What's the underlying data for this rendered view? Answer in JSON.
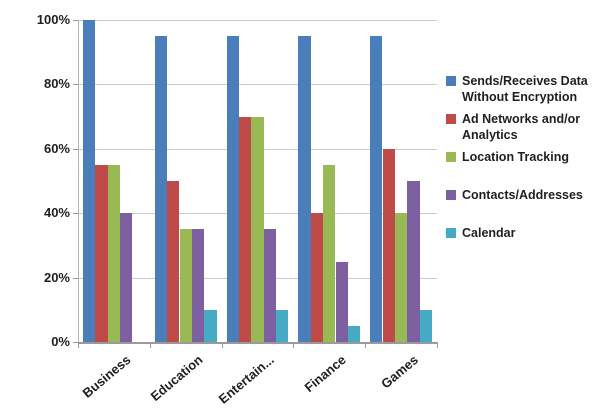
{
  "chart_data": {
    "type": "bar",
    "title": "",
    "xlabel": "",
    "ylabel": "",
    "categories": [
      "Business",
      "Education",
      "Entertain...",
      "Finance",
      "Games"
    ],
    "series": [
      {
        "name": "Sends/Receives Data Without Encryption",
        "color": "#4A7EBB",
        "values": [
          100,
          95,
          95,
          95,
          95
        ]
      },
      {
        "name": "Ad Networks and/or Analytics",
        "color": "#BE4B48",
        "values": [
          55,
          50,
          70,
          40,
          60
        ]
      },
      {
        "name": "Location Tracking",
        "color": "#98B954",
        "values": [
          55,
          35,
          70,
          55,
          40
        ]
      },
      {
        "name": "Contacts/Addresses",
        "color": "#7D60A0",
        "values": [
          40,
          35,
          35,
          25,
          50
        ]
      },
      {
        "name": "Calendar",
        "color": "#45AAC5",
        "values": [
          0,
          10,
          10,
          5,
          10
        ]
      }
    ],
    "ylim": [
      0,
      100
    ],
    "yticks": [
      0,
      20,
      40,
      60,
      80,
      100
    ],
    "ytick_labels": [
      "0%",
      "20%",
      "40%",
      "60%",
      "80%",
      "100%"
    ],
    "grid": true,
    "legend_position": "right"
  },
  "colors": {
    "background": "#FFFFFF",
    "gridline": "#C9C9C9",
    "axis": "#9A9A9A",
    "text": "#1F1F1F"
  }
}
